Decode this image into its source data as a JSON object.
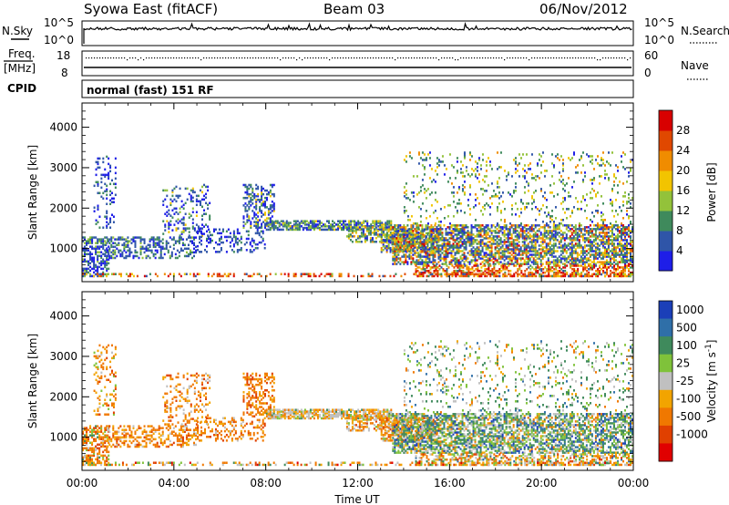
{
  "header": {
    "station": "Syowa East (fitACF)",
    "beam": "Beam 03",
    "date": "06/Nov/2012"
  },
  "status_panels": {
    "nsky_label": "N.Sky",
    "nsearch_label": "N.Search",
    "noise_top_tick": "10^5",
    "noise_bottom_tick": "10^0",
    "freq_label_line1": "Freq.",
    "freq_label_line2": "[MHz]",
    "freq_ticks": [
      "18",
      "8"
    ],
    "nave_label": "Nave",
    "nave_ticks": [
      "60",
      "0"
    ],
    "cpid_label": "CPID",
    "cpid_value": "normal (fast) 151 RF"
  },
  "chart_data": [
    {
      "type": "heatmap",
      "name": "power",
      "ylabel": "Slant Range [km]",
      "ylim": [
        180,
        4600
      ],
      "y_ticks": [
        1000,
        2000,
        3000,
        4000
      ],
      "x_ticks": [
        "00:00",
        "04:00",
        "08:00",
        "12:00",
        "16:00",
        "20:00",
        "00:00"
      ],
      "x_tick_hours": [
        0,
        4,
        8,
        12,
        16,
        20,
        24
      ],
      "xlim_hours": [
        0,
        24
      ],
      "colorbar": {
        "label": "Power [dB]",
        "ticks": [
          "4",
          "8",
          "12",
          "16",
          "20",
          "24",
          "28"
        ],
        "colors": [
          "#1e1ee8",
          "#2f55a8",
          "#3f8a5c",
          "#93c23a",
          "#f2c400",
          "#f08c00",
          "#e04800",
          "#d80000"
        ]
      }
    },
    {
      "type": "heatmap",
      "name": "velocity",
      "ylabel": "Slant Range [km]",
      "xlabel": "Time UT",
      "ylim": [
        180,
        4600
      ],
      "y_ticks": [
        1000,
        2000,
        3000,
        4000
      ],
      "x_ticks": [
        "00:00",
        "04:00",
        "08:00",
        "12:00",
        "16:00",
        "20:00",
        "00:00"
      ],
      "x_tick_hours": [
        0,
        4,
        8,
        12,
        16,
        20,
        24
      ],
      "xlim_hours": [
        0,
        24
      ],
      "colorbar": {
        "label": "Velocity [m s",
        "label_superscript": "-1",
        "label_close": "]",
        "ticks": [
          "1000",
          "500",
          "100",
          "25",
          "-25",
          "-100",
          "-500",
          "-1000"
        ],
        "colors": [
          "#1b3fb8",
          "#2f6fa8",
          "#3f8a5c",
          "#7fc23a",
          "#c0c0c0",
          "#f2a400",
          "#f07800",
          "#e04000",
          "#e00000"
        ]
      }
    }
  ]
}
